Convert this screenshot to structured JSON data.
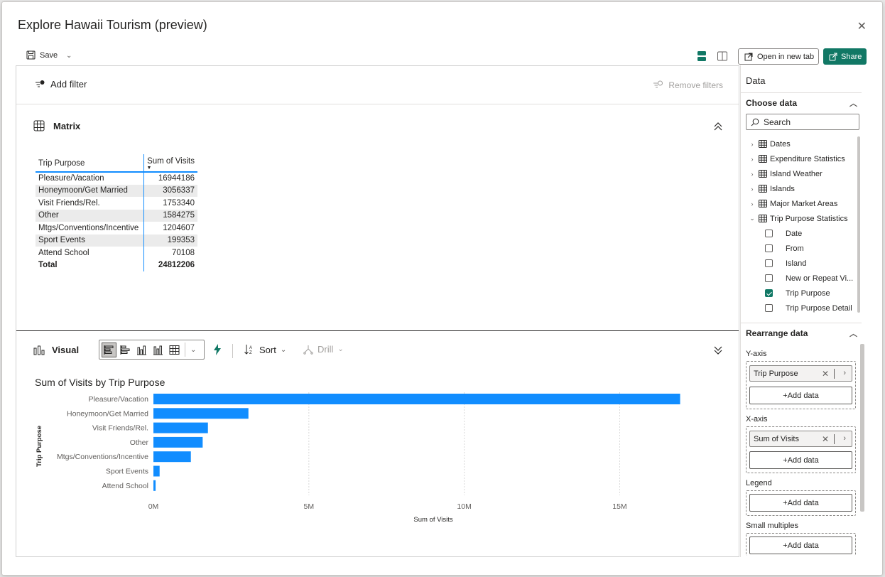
{
  "window": {
    "title": "Explore Hawaii Tourism (preview)"
  },
  "toolbar": {
    "save_label": "Save",
    "open_new_tab": "Open in new tab",
    "share": "Share"
  },
  "filters": {
    "add_filter": "Add filter",
    "remove_filters": "Remove filters"
  },
  "matrix": {
    "title": "Matrix",
    "col_category": "Trip Purpose",
    "col_value": "Sum of Visits",
    "rows": [
      {
        "category": "Pleasure/Vacation",
        "value": "16944186"
      },
      {
        "category": "Honeymoon/Get Married",
        "value": "3056337"
      },
      {
        "category": "Visit Friends/Rel.",
        "value": "1753340"
      },
      {
        "category": "Other",
        "value": "1584275"
      },
      {
        "category": "Mtgs/Conventions/Incentive",
        "value": "1204607"
      },
      {
        "category": "Sport Events",
        "value": "199353"
      },
      {
        "category": "Attend School",
        "value": "70108"
      }
    ],
    "total_label": "Total",
    "total_value": "24812206"
  },
  "visual": {
    "title": "Visual",
    "sort_label": "Sort",
    "drill_label": "Drill"
  },
  "chart_data": {
    "type": "bar",
    "orientation": "horizontal",
    "title": "Sum of Visits by Trip Purpose",
    "xlabel": "Sum of Visits",
    "ylabel": "Trip Purpose",
    "categories": [
      "Pleasure/Vacation",
      "Honeymoon/Get Married",
      "Visit Friends/Rel.",
      "Other",
      "Mtgs/Conventions/Incentive",
      "Sport Events",
      "Attend School"
    ],
    "values": [
      16944186,
      3056337,
      1753340,
      1584275,
      1204607,
      199353,
      70108
    ],
    "xlim": [
      0,
      17000000
    ],
    "xticks": [
      0,
      5000000,
      10000000,
      15000000
    ],
    "xtick_labels": [
      "0M",
      "5M",
      "10M",
      "15M"
    ],
    "bar_color": "#118DFF",
    "grid": "vertical dashed"
  },
  "data_pane": {
    "title": "Data",
    "choose_data": "Choose data",
    "search_placeholder": "Search",
    "tables": [
      {
        "label": "Dates"
      },
      {
        "label": "Expenditure Statistics"
      },
      {
        "label": "Island Weather"
      },
      {
        "label": "Islands"
      },
      {
        "label": "Major Market Areas"
      },
      {
        "label": "Trip Purpose Statistics"
      }
    ],
    "fields": [
      {
        "label": "Date",
        "checked": false
      },
      {
        "label": "From",
        "checked": false
      },
      {
        "label": "Island",
        "checked": false
      },
      {
        "label": "New or Repeat Vi...",
        "checked": false
      },
      {
        "label": "Trip Purpose",
        "checked": true
      },
      {
        "label": "Trip Purpose Detail",
        "checked": false
      }
    ],
    "rearrange_data": "Rearrange data",
    "y_axis_label": "Y-axis",
    "y_axis_field": "Trip Purpose",
    "x_axis_label": "X-axis",
    "x_axis_field": "Sum of Visits",
    "legend_label": "Legend",
    "small_multiples_label": "Small multiples",
    "add_data": "+Add data"
  },
  "colors": {
    "accent": "#117865",
    "bar": "#118DFF"
  }
}
